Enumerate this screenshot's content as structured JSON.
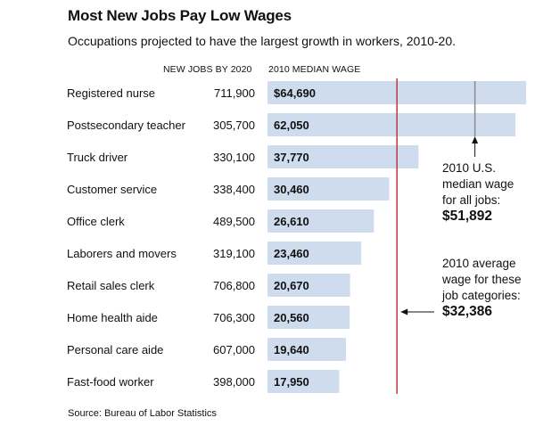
{
  "title": "Most New Jobs Pay Low Wages",
  "subtitle": "Occupations projected to have the largest growth in workers, 2010-20.",
  "col_jobs": "NEW JOBS BY 2020",
  "col_wage": "2010 MEDIAN WAGE",
  "source": "Source: Bureau of Labor Statistics",
  "colors": {
    "bar": "#cfdcee",
    "avg_line": "#c0373c",
    "median_line": "#8a8a8a",
    "text": "#111111"
  },
  "chart_data": {
    "type": "bar",
    "orientation": "horizontal",
    "title": "Most New Jobs Pay Low Wages",
    "subtitle": "Occupations projected to have the largest growth in workers, 2010-20.",
    "categories": [
      "Registered nurse",
      "Postsecondary teacher",
      "Truck driver",
      "Customer service",
      "Office clerk",
      "Laborers and movers",
      "Retail sales clerk",
      "Home health aide",
      "Personal care aide",
      "Fast-food worker"
    ],
    "new_jobs_labels": [
      "711,900",
      "305,700",
      "330,100",
      "338,400",
      "489,500",
      "319,100",
      "706,800",
      "706,300",
      "607,000",
      "398,000"
    ],
    "wage_labels": [
      "$64,690",
      "62,050",
      "37,770",
      "30,460",
      "26,610",
      "23,460",
      "20,670",
      "20,560",
      "19,640",
      "17,950"
    ],
    "values": [
      64690,
      62050,
      37770,
      30460,
      26610,
      23460,
      20670,
      20560,
      19640,
      17950
    ],
    "reference_lines": [
      {
        "value": 51892,
        "lines": [
          "2010 U.S.",
          "median wage",
          "for all jobs:"
        ],
        "value_label": "$51,892",
        "style": "median"
      },
      {
        "value": 32386,
        "lines": [
          "2010 average",
          "wage for these",
          "job categories:"
        ],
        "value_label": "$32,386",
        "style": "average"
      }
    ]
  }
}
